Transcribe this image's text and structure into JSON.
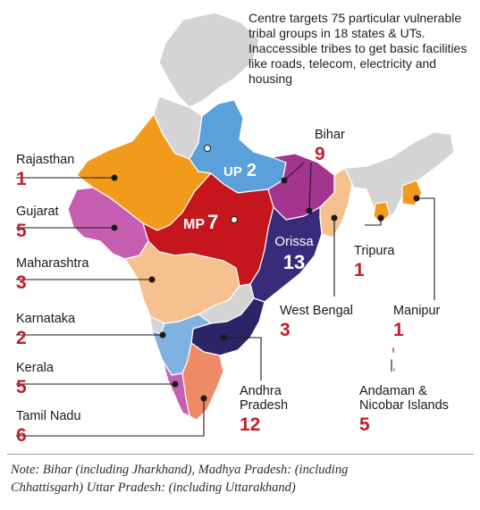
{
  "headline": "Centre targets 75 particular vulnerable tribal groups in 18 states & UTs. Inaccessible tribes to get basic facilities like roads, telecom, electricity and housing",
  "states": {
    "rajasthan": {
      "name": "Rajasthan",
      "count": "1",
      "color": "#f29a1c"
    },
    "gujarat": {
      "name": "Gujarat",
      "count": "5",
      "color": "#c65fb2"
    },
    "maharashtra": {
      "name": "Maharashtra",
      "count": "3",
      "color": "#f6c08f"
    },
    "karnataka": {
      "name": "Karnataka",
      "count": "2",
      "color": "#7fb2e0"
    },
    "kerala": {
      "name": "Kerala",
      "count": "5",
      "color": "#c65fb2"
    },
    "tamil_nadu": {
      "name": "Tamil Nadu",
      "count": "6",
      "color": "#ee8a66"
    },
    "up": {
      "name": "UP",
      "count": "2",
      "color": "#5b9fdb"
    },
    "bihar": {
      "name": "Bihar",
      "count": "9",
      "color": "#a4358f"
    },
    "mp": {
      "name": "MP",
      "count": "7",
      "color": "#c4161c"
    },
    "orissa": {
      "name": "Orissa",
      "count": "13",
      "color": "#3a2a7a"
    },
    "west_bengal": {
      "name": "West Bengal",
      "count": "3",
      "color": "#f6c08f"
    },
    "andhra": {
      "name": "Andhra Pradesh",
      "name_line1": "Andhra",
      "name_line2": "Pradesh",
      "count": "12",
      "color": "#2b2466"
    },
    "tripura": {
      "name": "Tripura",
      "count": "1",
      "color": "#f29a1c"
    },
    "manipur": {
      "name": "Manipur",
      "count": "1",
      "color": "#f29a1c"
    },
    "andaman": {
      "name": "Andaman & Nicobar Islands",
      "name_line1": "Andaman &",
      "name_line2": "Nicobar Islands",
      "count": "5",
      "color": "#c65fb2"
    }
  },
  "other_state_color": "#d4d4d4",
  "note_line1": "Note: Bihar (including Jharkhand), Madhya Pradesh: (including",
  "note_line2": "Chhattisgarh) Uttar Pradesh: (including Uttarakhand)"
}
